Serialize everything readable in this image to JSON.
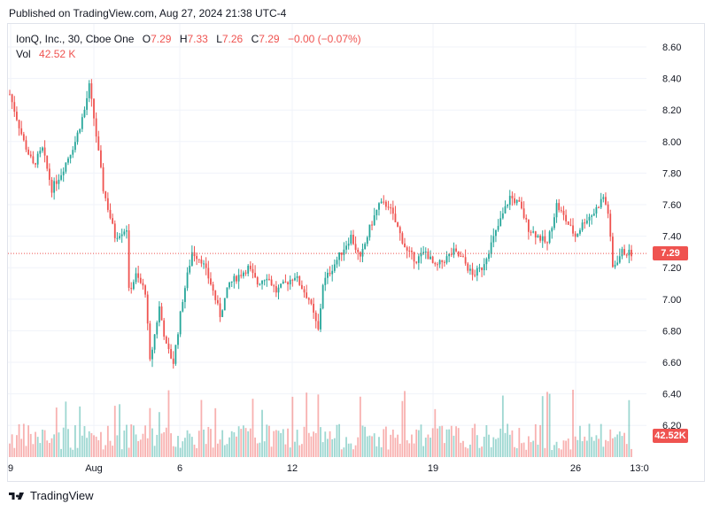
{
  "header": {
    "published": "Published on TradingView.com, Aug 27, 2024 21:38 UTC-4"
  },
  "legend": {
    "symbol": "IonQ, Inc., 30, Cboe One",
    "open_label": "O",
    "open": "7.29",
    "high_label": "H",
    "high": "7.33",
    "low_label": "L",
    "low": "7.26",
    "close_label": "C",
    "close": "7.29",
    "change": "−0.00 (−0.07%)",
    "vol_label": "Vol",
    "vol": "42.52 K"
  },
  "footer": {
    "brand": "TradingView"
  },
  "colors": {
    "up": "#26a69a",
    "down": "#ef5350",
    "grid": "#f0f3fa",
    "text": "#131722"
  },
  "chart_data": {
    "type": "candlestick",
    "ylim": [
      6.1,
      8.7
    ],
    "y_ticks": [
      "8.60",
      "8.40",
      "8.20",
      "8.00",
      "7.80",
      "7.60",
      "7.40",
      "7.20",
      "7.00",
      "6.80",
      "6.60",
      "6.40",
      "6.20"
    ],
    "x_ticks": [
      "9",
      "Aug",
      "6",
      "12",
      "19",
      "26",
      "13:0"
    ],
    "last_price": "7.29",
    "last_volume": "42.52K",
    "anchors": [
      [
        0,
        8.3
      ],
      [
        6,
        8.0
      ],
      [
        10,
        7.85
      ],
      [
        14,
        7.95
      ],
      [
        18,
        7.7
      ],
      [
        22,
        7.8
      ],
      [
        28,
        8.0
      ],
      [
        32,
        8.2
      ],
      [
        34,
        8.35
      ],
      [
        36,
        8.15
      ],
      [
        40,
        7.7
      ],
      [
        45,
        7.4
      ],
      [
        50,
        7.45
      ],
      [
        51,
        7.05
      ],
      [
        54,
        7.15
      ],
      [
        58,
        7.05
      ],
      [
        60,
        6.6
      ],
      [
        64,
        6.95
      ],
      [
        67,
        6.7
      ],
      [
        70,
        6.6
      ],
      [
        74,
        7.0
      ],
      [
        78,
        7.3
      ],
      [
        82,
        7.25
      ],
      [
        86,
        7.1
      ],
      [
        90,
        6.9
      ],
      [
        94,
        7.1
      ],
      [
        98,
        7.15
      ],
      [
        102,
        7.2
      ],
      [
        106,
        7.1
      ],
      [
        110,
        7.15
      ],
      [
        114,
        7.05
      ],
      [
        118,
        7.1
      ],
      [
        122,
        7.15
      ],
      [
        128,
        7.0
      ],
      [
        132,
        6.8
      ],
      [
        134,
        7.1
      ],
      [
        138,
        7.2
      ],
      [
        142,
        7.3
      ],
      [
        146,
        7.4
      ],
      [
        150,
        7.25
      ],
      [
        154,
        7.45
      ],
      [
        158,
        7.6
      ],
      [
        162,
        7.6
      ],
      [
        166,
        7.45
      ],
      [
        170,
        7.3
      ],
      [
        174,
        7.25
      ],
      [
        178,
        7.3
      ],
      [
        182,
        7.2
      ],
      [
        186,
        7.25
      ],
      [
        190,
        7.3
      ],
      [
        194,
        7.25
      ],
      [
        198,
        7.15
      ],
      [
        202,
        7.2
      ],
      [
        206,
        7.35
      ],
      [
        210,
        7.5
      ],
      [
        214,
        7.65
      ],
      [
        218,
        7.6
      ],
      [
        222,
        7.45
      ],
      [
        226,
        7.4
      ],
      [
        230,
        7.35
      ],
      [
        234,
        7.6
      ],
      [
        238,
        7.5
      ],
      [
        242,
        7.4
      ],
      [
        246,
        7.5
      ],
      [
        250,
        7.55
      ],
      [
        254,
        7.65
      ],
      [
        256,
        7.55
      ],
      [
        258,
        7.2
      ],
      [
        262,
        7.3
      ],
      [
        266,
        7.29
      ]
    ]
  }
}
